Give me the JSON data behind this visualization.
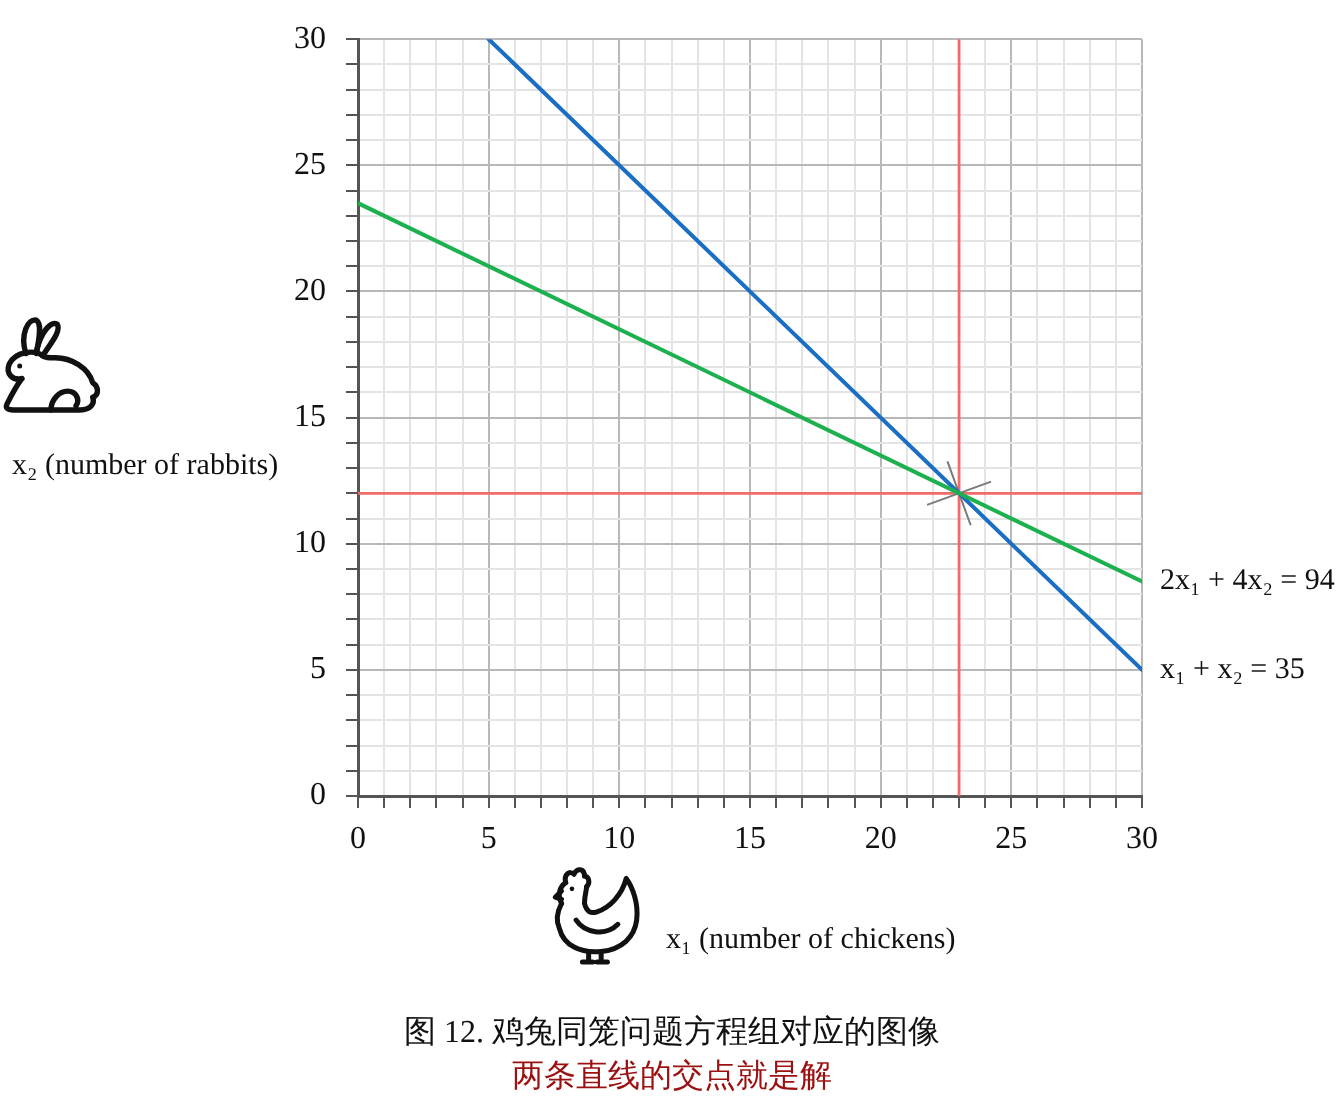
{
  "chart_data": {
    "type": "line",
    "title": "图 12. 鸡兔同笼问题方程组对应的图像",
    "subtitle": "两条直线的交点就是解",
    "xlabel": "x₁ (number of chickens)",
    "ylabel": "x₂ (number of rabbits)",
    "series": [
      {
        "name": "2x₁ + 4x₂ = 94",
        "color": "#1db04f",
        "x": [
          0,
          30
        ],
        "values": [
          23.5,
          8.5
        ]
      },
      {
        "name": "x₁ + x₂ = 35",
        "color": "#1a6fc4",
        "x": [
          5,
          30
        ],
        "values": [
          30,
          5
        ]
      },
      {
        "type": "scatter",
        "color": "#7a7a7a",
        "marker": "cross",
        "x": [
          23
        ],
        "values": [
          12
        ]
      }
    ],
    "xlim": [
      0,
      30
    ],
    "ylim": [
      0,
      30
    ],
    "xticks": [
      0,
      {
        "value": 1,
        "label": null
      },
      {
        "value": 2,
        "label": null
      },
      {
        "value": 3,
        "label": null
      },
      {
        "value": 4,
        "label": null
      },
      5,
      {
        "value": 6,
        "label": null
      },
      {
        "value": 7,
        "label": null
      },
      {
        "value": 8,
        "label": null
      },
      {
        "value": 9,
        "label": null
      },
      10,
      {
        "value": 11,
        "label": null
      },
      {
        "value": 12,
        "label": null
      },
      {
        "value": 13,
        "label": null
      },
      {
        "value": 14,
        "label": null
      },
      15,
      {
        "value": 16,
        "label": null
      },
      {
        "value": 17,
        "label": null
      },
      {
        "value": 18,
        "label": null
      },
      {
        "value": 19,
        "label": null
      },
      20,
      {
        "value": 21,
        "label": null
      },
      {
        "value": 22,
        "label": null
      },
      {
        "value": 23,
        "label": null
      },
      {
        "value": 24,
        "label": null
      },
      25,
      {
        "value": 26,
        "label": null
      },
      {
        "value": 27,
        "label": null
      },
      {
        "value": 28,
        "label": null
      },
      {
        "value": 29,
        "label": null
      },
      30
    ],
    "yticks": [
      0,
      {
        "value": 1,
        "label": null
      },
      {
        "value": 2,
        "label": null
      },
      {
        "value": 3,
        "label": null
      },
      {
        "value": 4,
        "label": null
      },
      5,
      {
        "value": 6,
        "label": null
      },
      {
        "value": 7,
        "label": null
      },
      {
        "value": 8,
        "label": null
      },
      {
        "value": 9,
        "label": null
      },
      10,
      {
        "value": 11,
        "label": null
      },
      {
        "value": 12,
        "label": null
      },
      {
        "value": 13,
        "label": null
      },
      {
        "value": 14,
        "label": null
      },
      15,
      {
        "value": 16,
        "label": null
      },
      {
        "value": 17,
        "label": null
      },
      {
        "value": 18,
        "label": null
      },
      {
        "value": 19,
        "label": null
      },
      20,
      {
        "value": 21,
        "label": null
      },
      {
        "value": 22,
        "label": null
      },
      {
        "value": 23,
        "label": null
      },
      {
        "value": 24,
        "label": null
      },
      25,
      {
        "value": 26,
        "label": null
      },
      {
        "value": 27,
        "label": null
      },
      {
        "value": 28,
        "label": null
      },
      {
        "value": 29,
        "label": null
      },
      30
    ],
    "grid": true,
    "ref_lines": [
      {
        "axis": "x",
        "value": 23,
        "color": "#f26b6b"
      },
      {
        "axis": "y",
        "value": 12,
        "color": "#f26b6b"
      }
    ]
  }
}
